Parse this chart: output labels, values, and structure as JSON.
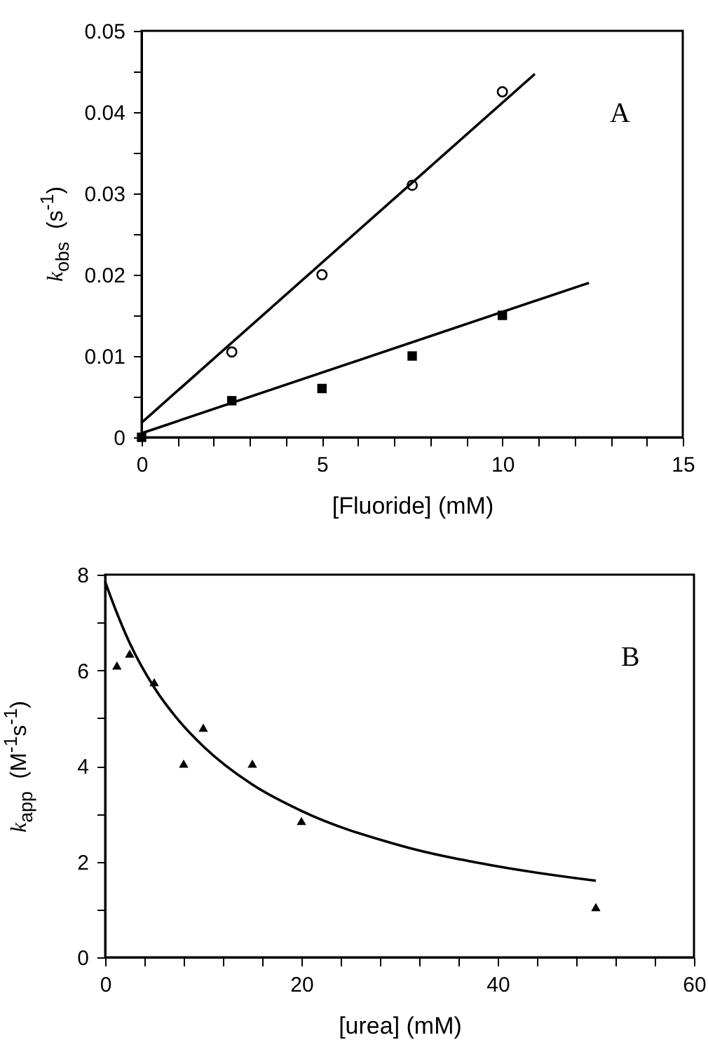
{
  "chart_data": [
    {
      "type": "scatter",
      "xlabel": "[Fluoride]  (mM)",
      "ylabel": "k$_{obs}$  (s$^{-1}$)",
      "annotations": [
        "A"
      ],
      "xlim": [
        0,
        15
      ],
      "ylim": [
        0,
        0.05
      ],
      "xticks": [
        0,
        {
          "value": 1,
          "label": null
        },
        {
          "value": 2,
          "label": null
        },
        {
          "value": 3,
          "label": null
        },
        {
          "value": 4,
          "label": null
        },
        5,
        {
          "value": 6,
          "label": null
        },
        {
          "value": 7,
          "label": null
        },
        {
          "value": 8,
          "label": null
        },
        {
          "value": 9,
          "label": null
        },
        10,
        {
          "value": 11,
          "label": null
        },
        {
          "value": 12,
          "label": null
        },
        {
          "value": 13,
          "label": null
        },
        {
          "value": 14,
          "label": null
        },
        15
      ],
      "yticks": [
        0,
        {
          "value": 0.005,
          "label": null
        },
        0.01,
        {
          "value": 0.015,
          "label": null
        },
        0.02,
        {
          "value": 0.025,
          "label": null
        },
        0.03,
        {
          "value": 0.035,
          "label": null
        },
        0.04,
        {
          "value": 0.045,
          "label": null
        },
        0.05
      ],
      "series": [
        {
          "marker": "circle",
          "color": "#000000",
          "x": [
            2.5,
            5,
            7.5,
            10
          ],
          "values": [
            0.0105,
            0.02,
            0.031,
            0.0425
          ]
        },
        {
          "marker": "square",
          "color": "#000000",
          "x": [
            0,
            2.5,
            5,
            7.5,
            10
          ],
          "values": [
            0,
            0.0045,
            0.006,
            0.01,
            0.015
          ]
        },
        {
          "type": "line",
          "marker": "none",
          "color": "#000000",
          "x": [
            0,
            10.9
          ],
          "values": [
            0.0018,
            0.0447
          ]
        },
        {
          "type": "line",
          "marker": "none",
          "color": "#000000",
          "x": [
            0,
            12.4
          ],
          "values": [
            0.0005,
            0.019
          ]
        }
      ]
    },
    {
      "type": "scatter",
      "xlabel": "[urea]  (mM)",
      "ylabel": "k$_{app}$  (M$^{-1}$s$^{-1}$)",
      "annotations": [
        "B"
      ],
      "xlim": [
        0,
        60
      ],
      "ylim": [
        0,
        8
      ],
      "xticks": [
        0,
        {
          "value": 4,
          "label": null
        },
        {
          "value": 8,
          "label": null
        },
        {
          "value": 12,
          "label": null
        },
        {
          "value": 16,
          "label": null
        },
        20,
        {
          "value": 24,
          "label": null
        },
        {
          "value": 28,
          "label": null
        },
        {
          "value": 32,
          "label": null
        },
        {
          "value": 36,
          "label": null
        },
        40,
        {
          "value": 44,
          "label": null
        },
        {
          "value": 48,
          "label": null
        },
        {
          "value": 52,
          "label": null
        },
        {
          "value": 56,
          "label": null
        },
        60
      ],
      "yticks": [
        0,
        {
          "value": 1,
          "label": null
        },
        2,
        {
          "value": 3,
          "label": null
        },
        4,
        {
          "value": 5,
          "label": null
        },
        6,
        {
          "value": 7,
          "label": null
        },
        8
      ],
      "series": [
        {
          "marker": "triangle",
          "color": "#000000",
          "x": [
            1.2,
            2.5,
            5,
            8,
            10,
            15,
            20,
            50
          ],
          "values": [
            6.1,
            6.35,
            5.75,
            4.05,
            4.8,
            4.05,
            2.85,
            1.05
          ]
        },
        {
          "type": "line",
          "marker": "none",
          "color": "#000000",
          "x": [
            0,
            1,
            2.5,
            5,
            7.5,
            10,
            15,
            20,
            30,
            40,
            50
          ],
          "values": [
            7.85,
            7.3,
            6.57,
            5.64,
            4.95,
            4.41,
            3.61,
            3.06,
            2.34,
            1.9,
            1.6
          ]
        }
      ]
    }
  ]
}
